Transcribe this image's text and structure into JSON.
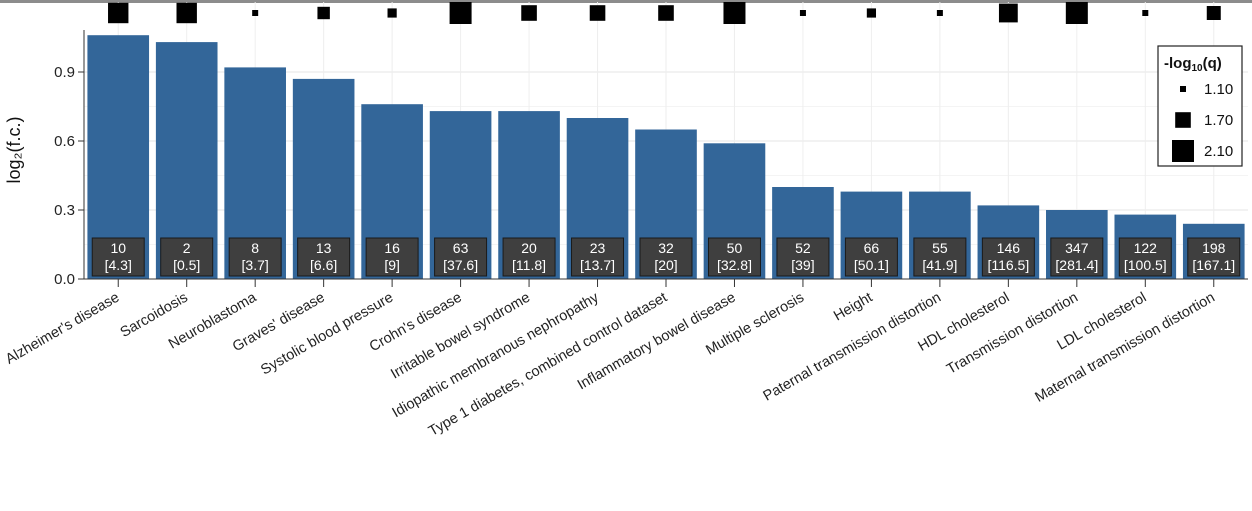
{
  "chart_data": {
    "type": "bar",
    "title": "",
    "xlabel": "",
    "ylabel": "log₂(f.c.)",
    "ylim": [
      0,
      1.0
    ],
    "yticks": [
      "0.0",
      "0.3",
      "0.6",
      "0.9"
    ],
    "grid": true,
    "bar_color": "#336699",
    "count_box_color": "#3f3f3f",
    "categories": [
      "Alzheimer's disease",
      "Sarcoidosis",
      "Neuroblastoma",
      "Graves' disease",
      "Systolic blood pressure",
      "Crohn's disease",
      "Irritable bowel syndrome",
      "Idiopathic membranous nephropathy",
      "Type 1 diabetes, combined control dataset",
      "Inflammatory bowel disease",
      "Multiple sclerosis",
      "Height",
      "Paternal transmission distortion",
      "HDL cholesterol",
      "Transmission distortion",
      "LDL cholesterol",
      "Maternal transmission distortion"
    ],
    "values": [
      1.06,
      1.03,
      0.92,
      0.87,
      0.76,
      0.73,
      0.73,
      0.7,
      0.65,
      0.59,
      0.4,
      0.38,
      0.38,
      0.32,
      0.3,
      0.28,
      0.24
    ],
    "observed": [
      "10",
      "2",
      "8",
      "13",
      "16",
      "63",
      "20",
      "23",
      "32",
      "50",
      "52",
      "66",
      "55",
      "146",
      "347",
      "122",
      "198"
    ],
    "expected": [
      "[4.3]",
      "[0.5]",
      "[3.7]",
      "[6.6]",
      "[9]",
      "[37.6]",
      "[11.8]",
      "[13.7]",
      "[20]",
      "[32.8]",
      "[39]",
      "[50.1]",
      "[41.9]",
      "[116.5]",
      "[281.4]",
      "[100.5]",
      "[167.1]"
    ],
    "neg_log10_q": [
      2.0,
      2.0,
      1.1,
      1.5,
      1.3,
      2.1,
      1.7,
      1.7,
      1.7,
      2.1,
      1.1,
      1.3,
      1.1,
      1.9,
      2.1,
      1.1,
      1.6
    ],
    "legend": {
      "title_main": "-log",
      "title_sub": "10",
      "title_tail": "(q)",
      "placement": "top-right",
      "entries": [
        {
          "label": "1.10",
          "q": 1.1
        },
        {
          "label": "1.70",
          "q": 1.7
        },
        {
          "label": "2.10",
          "q": 2.1
        }
      ]
    }
  }
}
